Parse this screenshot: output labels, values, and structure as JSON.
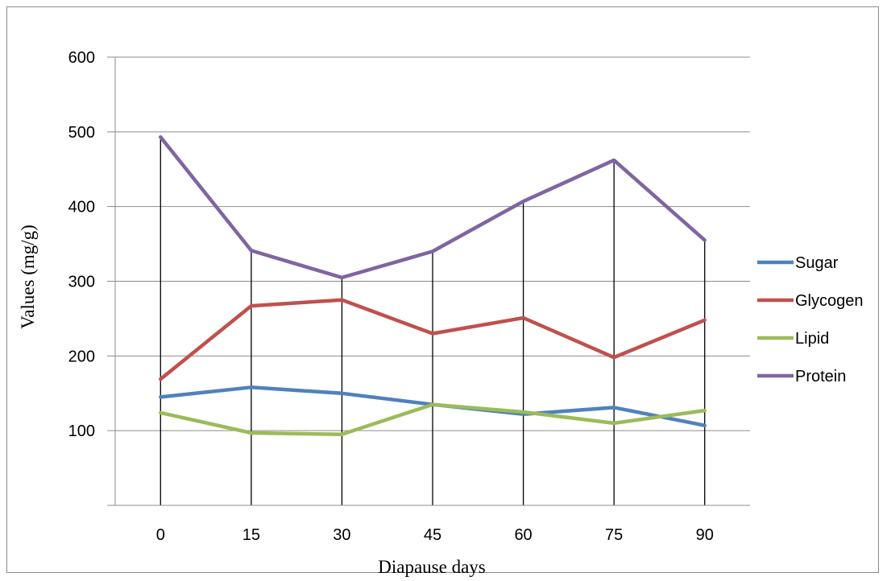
{
  "chart_data": {
    "type": "line",
    "title": "",
    "xlabel": "Diapause days",
    "ylabel": "Values (mg/g)",
    "categories": [
      "0",
      "15",
      "30",
      "45",
      "60",
      "75",
      "90"
    ],
    "x": [
      0,
      15,
      30,
      45,
      60,
      75,
      90
    ],
    "yticks": [
      "100",
      "200",
      "300",
      "400",
      "500",
      "600"
    ],
    "ylim": [
      0,
      600
    ],
    "grid": "horizontal",
    "legend": "right",
    "drop_lines": true,
    "series": [
      {
        "name": "Sugar",
        "color": "#4f81bd",
        "values": [
          145,
          158,
          150,
          135,
          122,
          131,
          107
        ]
      },
      {
        "name": "Glycogen",
        "color": "#c0504d",
        "values": [
          169,
          267,
          275,
          230,
          251,
          198,
          248
        ]
      },
      {
        "name": "Lipid",
        "color": "#9bbb59",
        "values": [
          124,
          97,
          95,
          135,
          125,
          110,
          127
        ]
      },
      {
        "name": "Protein",
        "color": "#8064a2",
        "values": [
          493,
          341,
          305,
          340,
          407,
          462,
          355
        ]
      }
    ]
  }
}
